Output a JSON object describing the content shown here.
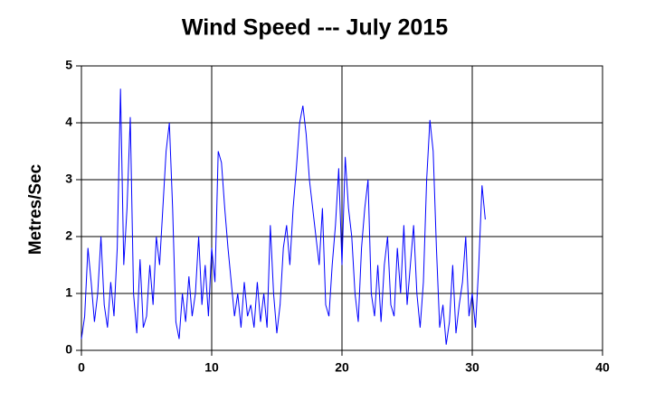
{
  "chart_data": {
    "type": "line",
    "title": "Wind Speed --- July 2015",
    "ylabel": "Metres/Sec",
    "color": "#0000ff",
    "x": [
      0,
      0.25,
      0.5,
      0.75,
      1,
      1.25,
      1.5,
      1.75,
      2,
      2.25,
      2.5,
      2.75,
      3,
      3.25,
      3.5,
      3.75,
      4,
      4.25,
      4.5,
      4.75,
      5,
      5.25,
      5.5,
      5.75,
      6,
      6.25,
      6.5,
      6.75,
      7,
      7.25,
      7.5,
      7.75,
      8,
      8.25,
      8.5,
      8.75,
      9,
      9.25,
      9.5,
      9.75,
      10,
      10.25,
      10.5,
      10.75,
      11,
      11.25,
      11.5,
      11.75,
      12,
      12.25,
      12.5,
      12.75,
      13,
      13.25,
      13.5,
      13.75,
      14,
      14.25,
      14.5,
      14.75,
      15,
      15.25,
      15.5,
      15.75,
      16,
      16.25,
      16.5,
      16.75,
      17,
      17.25,
      17.5,
      17.75,
      18,
      18.25,
      18.5,
      18.75,
      19,
      19.25,
      19.5,
      19.75,
      20,
      20.25,
      20.5,
      20.75,
      21,
      21.25,
      21.5,
      21.75,
      22,
      22.25,
      22.5,
      22.75,
      23,
      23.25,
      23.5,
      23.75,
      24,
      24.25,
      24.5,
      24.75,
      25,
      25.25,
      25.5,
      25.75,
      26,
      26.25,
      26.5,
      26.75,
      27,
      27.25,
      27.5,
      27.75,
      28,
      28.25,
      28.5,
      28.75,
      29,
      29.25,
      29.5,
      29.75,
      30,
      30.25,
      30.5,
      30.75,
      31
    ],
    "values": [
      0.2,
      0.6,
      1.8,
      1.2,
      0.5,
      1.0,
      2.0,
      0.8,
      0.4,
      1.2,
      0.6,
      1.8,
      4.6,
      1.5,
      2.5,
      4.1,
      1.0,
      0.3,
      1.6,
      0.4,
      0.6,
      1.5,
      0.8,
      2.0,
      1.5,
      2.5,
      3.5,
      4.0,
      2.5,
      0.5,
      0.2,
      1.0,
      0.5,
      1.3,
      0.6,
      1.0,
      2.0,
      0.8,
      1.5,
      0.6,
      1.8,
      1.2,
      3.5,
      3.3,
      2.5,
      1.8,
      1.2,
      0.6,
      1.0,
      0.4,
      1.2,
      0.6,
      0.8,
      0.4,
      1.2,
      0.5,
      1.0,
      0.4,
      2.2,
      1.0,
      0.3,
      0.8,
      1.8,
      2.2,
      1.5,
      2.5,
      3.2,
      4.0,
      4.3,
      3.8,
      3.0,
      2.5,
      2.0,
      1.5,
      2.5,
      0.8,
      0.6,
      1.5,
      2.2,
      3.2,
      1.5,
      3.4,
      2.5,
      2.0,
      1.0,
      0.5,
      1.8,
      2.5,
      3.0,
      1.0,
      0.6,
      1.5,
      0.5,
      1.5,
      2.0,
      0.8,
      0.6,
      1.8,
      1.0,
      2.2,
      0.8,
      1.5,
      2.2,
      1.0,
      0.4,
      1.2,
      3.0,
      4.05,
      3.5,
      1.8,
      0.4,
      0.8,
      0.1,
      0.5,
      1.5,
      0.3,
      0.8,
      1.2,
      2.0,
      0.6,
      1.0,
      0.4,
      1.5,
      2.9,
      2.3
    ],
    "xlim": [
      0,
      40
    ],
    "xticks": [
      0,
      10,
      20,
      30,
      40
    ],
    "ylim": [
      0,
      5
    ],
    "yticks": [
      0,
      1,
      2,
      3,
      4,
      5
    ],
    "grid": true
  }
}
